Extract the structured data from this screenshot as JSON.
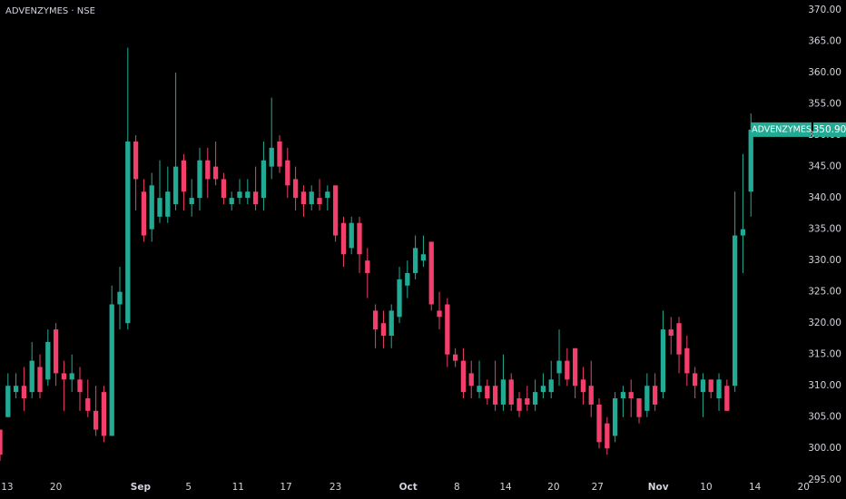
{
  "chart_data": {
    "type": "candlestick",
    "title": "ADVENZYMES · NSE",
    "up_color": "#22ab94",
    "down_color": "#f23f6c",
    "open": [
      303,
      305,
      309,
      310,
      309,
      313,
      311,
      319,
      312,
      311,
      311,
      308,
      306,
      309,
      302,
      323,
      320,
      349,
      341,
      335,
      337,
      337,
      339,
      346,
      339,
      340,
      346,
      345,
      343,
      339,
      340,
      340,
      341,
      340,
      345,
      349,
      346,
      343,
      341,
      339,
      340,
      340,
      342,
      336,
      332,
      336,
      330,
      322,
      320,
      318,
      321,
      326,
      328,
      330,
      333,
      322,
      323,
      315,
      314,
      312,
      309,
      310,
      310,
      307,
      311,
      308,
      308,
      307,
      309,
      309,
      312,
      314,
      316,
      311,
      310,
      307,
      304,
      302,
      308,
      309,
      308,
      306,
      310,
      309,
      319,
      320,
      316,
      312,
      309,
      311,
      308,
      310,
      310,
      334,
      341
    ],
    "high": [
      303,
      312,
      312,
      313,
      317,
      315,
      319,
      320,
      314,
      315,
      313,
      311,
      310,
      310,
      326,
      329,
      364,
      350,
      343,
      344,
      346,
      345,
      360,
      347,
      343,
      348,
      348,
      349,
      344,
      341,
      343,
      343,
      345,
      349,
      356,
      350,
      348,
      345,
      342,
      342,
      343,
      342,
      342,
      337,
      337,
      337,
      332,
      323,
      322,
      323,
      329,
      330,
      334,
      334,
      333,
      325,
      324,
      316,
      316,
      314,
      314,
      311,
      314,
      315,
      312,
      309,
      310,
      311,
      312,
      314,
      319,
      316,
      316,
      313,
      314,
      308,
      305,
      309,
      310,
      311,
      308,
      312,
      312,
      322,
      321,
      321,
      318,
      313,
      312,
      311,
      312,
      311,
      341,
      347,
      353.5
    ],
    "low": [
      298,
      305,
      308,
      306,
      308,
      308,
      310,
      310,
      306,
      309,
      306,
      305,
      302,
      301,
      302,
      319,
      319,
      338,
      333,
      333,
      336,
      336,
      338,
      338,
      337,
      338,
      340,
      342,
      339,
      338,
      339,
      339,
      338,
      338,
      343,
      344,
      340,
      338,
      337,
      338,
      338,
      338,
      333,
      329,
      331,
      328,
      324,
      316,
      316,
      316,
      320,
      324,
      327,
      329,
      322,
      319,
      313,
      313,
      308,
      308,
      308,
      307,
      306,
      306,
      306,
      305,
      306,
      306,
      308,
      308,
      310,
      310,
      308,
      307,
      305,
      300,
      299,
      301,
      305,
      305,
      304,
      305,
      306,
      308,
      315,
      312,
      310,
      308,
      305,
      308,
      306,
      306,
      309,
      328,
      337
    ],
    "close": [
      299,
      310,
      310,
      308,
      314,
      309,
      317,
      312,
      311,
      312,
      309,
      306,
      303,
      302,
      323,
      325,
      349,
      343,
      334,
      342,
      340,
      341,
      345,
      341,
      340,
      346,
      343,
      343,
      340,
      340,
      341,
      341,
      339,
      346,
      348,
      345,
      342,
      340,
      339,
      341,
      339,
      341,
      334,
      331,
      336,
      331,
      328,
      319,
      318,
      322,
      327,
      328,
      332,
      331,
      323,
      321,
      315,
      314,
      309,
      310,
      310,
      308,
      307,
      311,
      307,
      306,
      307,
      309,
      310,
      311,
      314,
      311,
      310,
      309,
      307,
      301,
      300,
      308,
      309,
      308,
      305,
      310,
      307,
      319,
      318,
      315,
      312,
      310,
      311,
      309,
      311,
      306,
      334,
      335,
      350.9
    ],
    "xlim": [
      0,
      101.7
    ],
    "ylim": [
      295.4,
      371.6
    ],
    "xticks": [
      {
        "value": 0.9,
        "label": "13"
      },
      {
        "value": 7,
        "label": "20"
      },
      {
        "value": 17.6,
        "label": "Sep"
      },
      {
        "value": 23.6,
        "label": "5"
      },
      {
        "value": 29.8,
        "label": "11"
      },
      {
        "value": 35.8,
        "label": "17"
      },
      {
        "value": 42,
        "label": "23"
      },
      {
        "value": 51.1,
        "label": "Oct"
      },
      {
        "value": 57.2,
        "label": "8"
      },
      {
        "value": 63.3,
        "label": "14"
      },
      {
        "value": 69.3,
        "label": "20"
      },
      {
        "value": 74.8,
        "label": "27"
      },
      {
        "value": 82.4,
        "label": "Nov"
      },
      {
        "value": 88.4,
        "label": "10"
      },
      {
        "value": 94.5,
        "label": "14"
      },
      {
        "value": 100.6,
        "label": "20"
      }
    ],
    "yticks": [
      {
        "value": 295,
        "label": "295.00"
      },
      {
        "value": 300,
        "label": "300.00"
      },
      {
        "value": 305,
        "label": "305.00"
      },
      {
        "value": 310,
        "label": "310.00"
      },
      {
        "value": 315,
        "label": "315.00"
      },
      {
        "value": 320,
        "label": "320.00"
      },
      {
        "value": 325,
        "label": "325.00"
      },
      {
        "value": 330,
        "label": "330.00"
      },
      {
        "value": 335,
        "label": "335.00"
      },
      {
        "value": 340,
        "label": "340.00"
      },
      {
        "value": 345,
        "label": "345.00"
      },
      {
        "value": 350,
        "label": "350.00"
      },
      {
        "value": 355,
        "label": "355.00"
      },
      {
        "value": 360,
        "label": "360.00"
      },
      {
        "value": 365,
        "label": "365.00"
      },
      {
        "value": 370,
        "label": "370.00"
      }
    ],
    "price_tag": {
      "name": "ADVENZYMES",
      "label": "350.90"
    }
  }
}
